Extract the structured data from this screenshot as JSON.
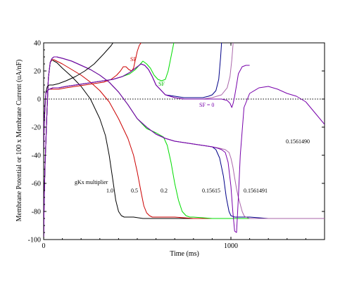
{
  "chart_data": {
    "type": "line",
    "xlabel": "Time (ms)",
    "ylabel": "Membrane Potential or 100 x Membrane Current (uA/nF)",
    "xlim": [
      0,
      1500
    ],
    "ylim": [
      -100,
      40
    ],
    "x_ticks": [
      0,
      1000
    ],
    "x_tick_labels": [
      "0",
      "1000"
    ],
    "y_ticks": [
      -100,
      -80,
      -60,
      -40,
      -20,
      0,
      20,
      40
    ],
    "y_tick_labels": [
      "-100",
      "-80",
      "-60",
      "-40",
      "-20",
      "0",
      "20",
      "40"
    ],
    "zero_line": true,
    "grid": false,
    "colors": {
      "g1.0": "#000000",
      "g0.5": "#cc0000",
      "g0.2": "#00dd00",
      "g0.15615": "#000088",
      "g0.1561491": "#aa66aa",
      "g0.1561490": "#7700aa"
    },
    "annotations": {
      "gkx_header": "gKx multiplier",
      "m1": "1.0",
      "m2": "0.5",
      "m3": "0.2",
      "m4": "0.15615",
      "m5": "0.1561491",
      "m6": "0.1561490",
      "sf_red": "SF",
      "sf_green": "SF",
      "sf_zero": "SF = 0"
    },
    "series": [
      {
        "key": "g1.0",
        "role": "voltage",
        "x": [
          0,
          3,
          8,
          12,
          18,
          25,
          35,
          45,
          55,
          70,
          100,
          150,
          200,
          250,
          300,
          330,
          350,
          370,
          385,
          400,
          415,
          430,
          450,
          480,
          530,
          600,
          700,
          800,
          900,
          1000,
          1100,
          1200,
          1300,
          1400,
          1500
        ],
        "y": [
          -100,
          -70,
          -45,
          -30,
          -8,
          15,
          26,
          28,
          27,
          26,
          22,
          16,
          9,
          0,
          -14,
          -26,
          -40,
          -58,
          -72,
          -80,
          -83,
          -84,
          -84,
          -84,
          -85,
          -85,
          -85,
          -85,
          -85,
          -85,
          -85,
          -85,
          -85,
          -85,
          -85
        ]
      },
      {
        "key": "g0.5",
        "role": "voltage",
        "x": [
          0,
          3,
          8,
          12,
          18,
          25,
          35,
          45,
          55,
          70,
          100,
          150,
          200,
          250,
          300,
          350,
          400,
          450,
          480,
          500,
          520,
          535,
          550,
          565,
          580,
          600,
          650,
          700,
          800,
          900,
          1000,
          1100,
          1200,
          1300,
          1400,
          1500
        ],
        "y": [
          -100,
          -70,
          -45,
          -30,
          -8,
          15,
          26,
          28,
          28,
          27,
          25,
          21,
          17,
          12,
          6,
          -2,
          -14,
          -28,
          -40,
          -52,
          -66,
          -76,
          -81,
          -83,
          -84,
          -84,
          -84,
          -84,
          -85,
          -85,
          -85,
          -85,
          -85,
          -85,
          -85,
          -85
        ]
      },
      {
        "key": "g0.2",
        "role": "voltage",
        "x": [
          0,
          3,
          8,
          12,
          18,
          25,
          35,
          45,
          55,
          70,
          100,
          150,
          200,
          250,
          300,
          350,
          400,
          450,
          500,
          550,
          600,
          640,
          660,
          680,
          700,
          720,
          740,
          760,
          780,
          800,
          900,
          1000,
          1100,
          1200,
          1300,
          1400,
          1500
        ],
        "y": [
          -100,
          -70,
          -45,
          -30,
          -8,
          15,
          26,
          29,
          30,
          30,
          29,
          27,
          24,
          21,
          17,
          12,
          5,
          -4,
          -14,
          -21,
          -24,
          -27,
          -33,
          -45,
          -60,
          -72,
          -80,
          -83,
          -84,
          -84,
          -85,
          -85,
          -85,
          -85,
          -85,
          -85,
          -85
        ]
      },
      {
        "key": "g0.15615",
        "role": "voltage",
        "x": [
          0,
          3,
          8,
          12,
          18,
          25,
          35,
          45,
          55,
          70,
          100,
          150,
          200,
          250,
          300,
          350,
          400,
          450,
          500,
          550,
          600,
          650,
          700,
          750,
          800,
          850,
          900,
          920,
          940,
          960,
          975,
          990,
          1000,
          1020,
          1050,
          1100,
          1200,
          1300,
          1400,
          1500
        ],
        "y": [
          -100,
          -70,
          -45,
          -30,
          -8,
          15,
          26,
          29,
          30,
          30,
          29,
          27,
          24,
          21,
          17,
          12,
          5,
          -4,
          -14,
          -20,
          -25,
          -28,
          -30,
          -31,
          -32,
          -33,
          -34,
          -36,
          -42,
          -55,
          -70,
          -80,
          -83,
          -84,
          -84,
          -84,
          -85,
          -85,
          -85,
          -85
        ]
      },
      {
        "key": "g0.1561491",
        "role": "voltage",
        "x": [
          0,
          3,
          8,
          12,
          18,
          25,
          35,
          45,
          55,
          70,
          100,
          150,
          200,
          250,
          300,
          350,
          400,
          450,
          500,
          550,
          600,
          650,
          700,
          750,
          800,
          850,
          900,
          940,
          970,
          990,
          1000,
          1010,
          1020,
          1030,
          1040,
          1050,
          1060,
          1070,
          1080,
          1100,
          1200,
          1300,
          1400,
          1500
        ],
        "y": [
          -100,
          -70,
          -45,
          -30,
          -8,
          15,
          26,
          29,
          30,
          30,
          29,
          27,
          24,
          21,
          17,
          12,
          5,
          -4,
          -14,
          -20,
          -25,
          -28,
          -30,
          -31,
          -32,
          -33,
          -34,
          -35,
          -36,
          -38,
          -42,
          -48,
          -56,
          -64,
          -70,
          -75,
          -80,
          -83,
          -84,
          -85,
          -85,
          -85,
          -85,
          -85
        ]
      },
      {
        "key": "g0.1561490",
        "role": "voltage",
        "x": [
          0,
          3,
          8,
          12,
          18,
          25,
          35,
          45,
          55,
          70,
          100,
          150,
          200,
          250,
          300,
          350,
          400,
          450,
          500,
          550,
          600,
          650,
          700,
          750,
          800,
          850,
          900,
          930,
          950,
          970,
          985,
          1000,
          1010,
          1020,
          1030,
          1040,
          1050,
          1070,
          1100,
          1150,
          1200,
          1250,
          1300,
          1350,
          1400,
          1450,
          1500
        ],
        "y": [
          -100,
          -70,
          -45,
          -30,
          -8,
          15,
          26,
          29,
          30,
          30,
          29,
          27,
          24,
          21,
          17,
          12,
          5,
          -4,
          -14,
          -20,
          -25,
          -28,
          -30,
          -31,
          -32,
          -33,
          -34,
          -35,
          -36,
          -38,
          -45,
          -62,
          -80,
          -94,
          -95,
          -70,
          -40,
          -6,
          4,
          8,
          9,
          7,
          4,
          2,
          -2,
          -10,
          -18
        ]
      },
      {
        "key": "g1.0",
        "role": "current",
        "x": [
          0,
          3,
          8,
          12,
          20,
          30,
          50,
          80,
          120,
          170,
          220,
          270,
          320,
          360,
          380,
          395,
          405,
          412
        ],
        "y": [
          -40,
          -20,
          -5,
          5,
          9,
          10,
          10,
          11,
          13,
          16,
          20,
          25,
          32,
          38,
          42,
          46,
          48,
          50
        ]
      },
      {
        "key": "g0.5",
        "role": "current",
        "x": [
          0,
          3,
          8,
          12,
          20,
          30,
          50,
          80,
          120,
          170,
          220,
          270,
          320,
          360,
          390,
          410,
          425,
          440,
          455,
          470,
          480,
          490,
          500,
          510,
          520,
          530,
          540,
          550
        ],
        "y": [
          -35,
          -15,
          -2,
          4,
          6,
          7,
          7,
          7,
          8,
          9,
          10,
          11,
          12,
          14,
          17,
          20,
          23,
          23,
          21,
          20,
          22,
          28,
          34,
          38,
          40,
          45,
          48,
          50
        ]
      },
      {
        "key": "g0.2",
        "role": "current",
        "x": [
          0,
          3,
          8,
          12,
          20,
          30,
          50,
          80,
          120,
          170,
          220,
          270,
          320,
          370,
          420,
          460,
          490,
          510,
          530,
          550,
          570,
          590,
          610,
          630,
          650,
          665,
          680,
          695,
          705
        ],
        "y": [
          -35,
          -15,
          -2,
          4,
          6,
          7,
          8,
          8,
          9,
          10,
          11,
          12,
          13,
          14,
          16,
          18,
          21,
          24,
          27,
          25,
          22,
          17,
          14,
          13,
          14,
          20,
          30,
          40,
          50
        ]
      },
      {
        "key": "g0.15615",
        "role": "current",
        "x": [
          0,
          3,
          8,
          12,
          20,
          30,
          50,
          80,
          120,
          170,
          220,
          270,
          320,
          370,
          420,
          460,
          490,
          520,
          540,
          560,
          580,
          600,
          650,
          700,
          750,
          800,
          850,
          880,
          900,
          920,
          935,
          945,
          955
        ],
        "y": [
          -35,
          -15,
          -2,
          4,
          6,
          7,
          8,
          8,
          9,
          10,
          11,
          12,
          13,
          14,
          16,
          19,
          22,
          25,
          24,
          21,
          16,
          10,
          3,
          2,
          1,
          1,
          1,
          2,
          3,
          6,
          14,
          30,
          50
        ]
      },
      {
        "key": "g0.1561491",
        "role": "current",
        "x": [
          0,
          3,
          8,
          12,
          20,
          30,
          50,
          80,
          120,
          170,
          220,
          270,
          320,
          370,
          420,
          460,
          490,
          520,
          540,
          560,
          580,
          600,
          650,
          700,
          750,
          800,
          850,
          900,
          950,
          980,
          995,
          1005,
          1012,
          1018
        ],
        "y": [
          -35,
          -15,
          -2,
          4,
          6,
          7,
          8,
          8,
          9,
          10,
          11,
          12,
          13,
          14,
          16,
          19,
          22,
          25,
          24,
          21,
          16,
          10,
          3,
          1,
          0,
          0,
          0,
          1,
          3,
          8,
          16,
          28,
          40,
          50
        ]
      },
      {
        "key": "g0.1561490",
        "role": "current",
        "x": [
          0,
          3,
          8,
          12,
          20,
          30,
          50,
          80,
          120,
          170,
          220,
          270,
          320,
          370,
          420,
          460,
          490,
          520,
          540,
          560,
          580,
          600,
          650,
          700,
          750,
          800,
          850,
          900,
          950,
          980,
          995,
          1005,
          1012,
          1020,
          1030,
          1040,
          1060,
          1080,
          1100
        ],
        "y": [
          -35,
          -15,
          -2,
          4,
          6,
          7,
          8,
          8,
          9,
          10,
          11,
          12,
          13,
          14,
          16,
          19,
          22,
          25,
          24,
          21,
          16,
          10,
          3,
          1,
          0,
          0,
          0,
          0,
          0,
          -1,
          -3,
          -6,
          -3,
          2,
          10,
          18,
          23,
          24,
          24
        ]
      }
    ]
  }
}
